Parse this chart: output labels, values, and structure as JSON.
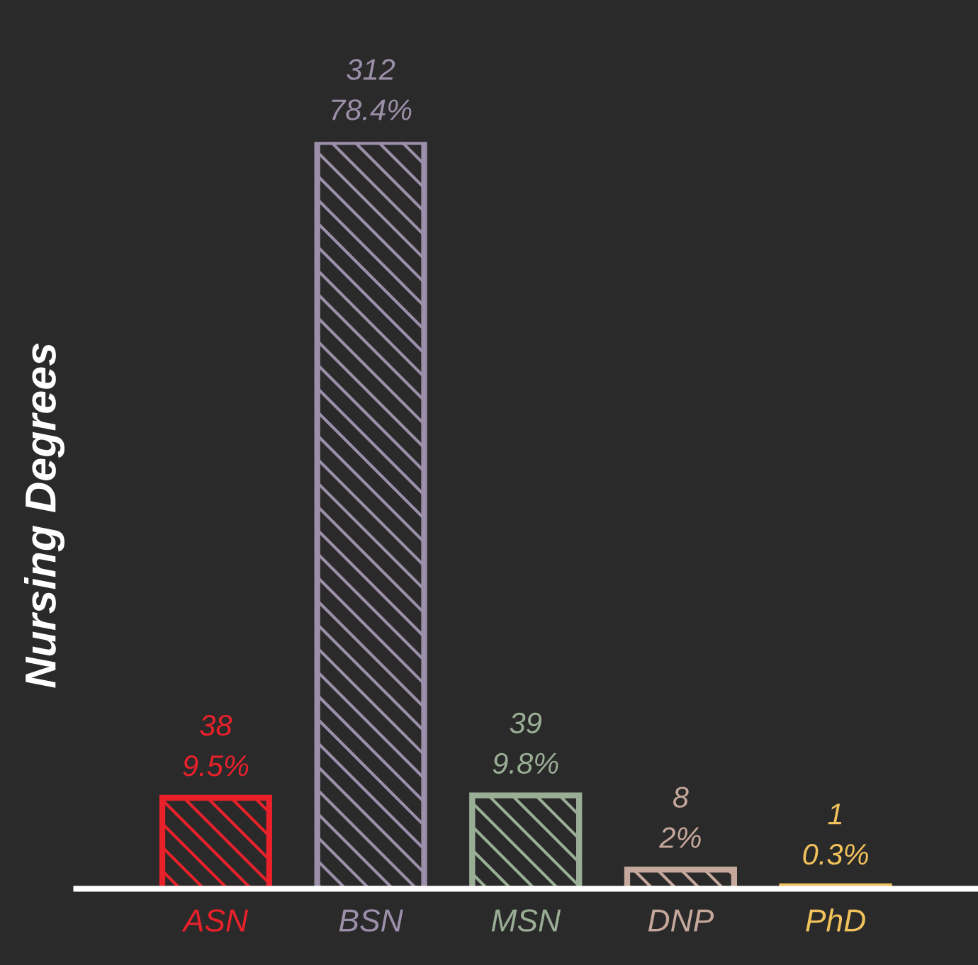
{
  "chart_data": {
    "type": "bar",
    "ylabel": "Nursing Degrees",
    "categories": [
      "ASN",
      "BSN",
      "MSN",
      "DNP",
      "PhD"
    ],
    "values": [
      38,
      312,
      39,
      8,
      1
    ],
    "colors": [
      "#e8212b",
      "#9c8fa9",
      "#9aae95",
      "#c5a89b",
      "#f1c25c"
    ],
    "value_labels": [
      "38\n9.5%",
      "312\n78.4%",
      "39\n9.8%",
      "8\n2%",
      "1\n0.3%"
    ],
    "grid": false,
    "legend": false
  }
}
